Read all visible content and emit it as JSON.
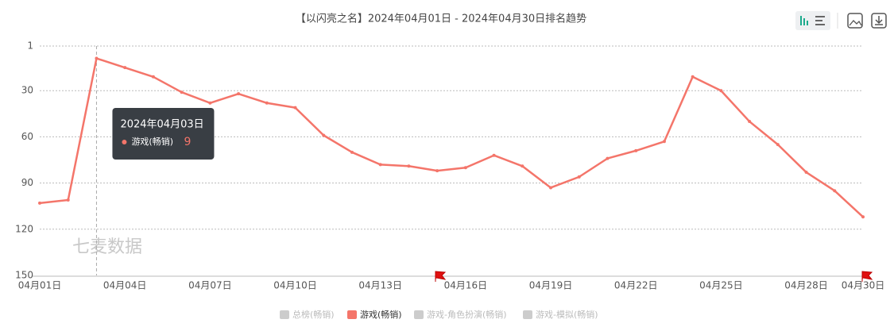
{
  "chart_data": {
    "type": "line",
    "title": "【以闪亮之名】2024年04月01日 - 2024年04月30日排名趋势",
    "categories": [
      "04月01日",
      null,
      null,
      "04月04日",
      null,
      null,
      "04月07日",
      null,
      null,
      "04月10日",
      null,
      null,
      "04月13日",
      null,
      null,
      "04月16日",
      null,
      null,
      "04月19日",
      null,
      null,
      "04月22日",
      null,
      null,
      "04月25日",
      null,
      null,
      "04月28日",
      null,
      "04月30日"
    ],
    "series": [
      {
        "name": "总榜(畅销)",
        "color": "#cccccc",
        "visible": false
      },
      {
        "name": "游戏(畅销)",
        "color": "#f4756a",
        "visible": true,
        "values": [
          103,
          101,
          9,
          15,
          21,
          31,
          38,
          32,
          38,
          41,
          59,
          70,
          78,
          79,
          82,
          80,
          72,
          79,
          93,
          86,
          74,
          69,
          63,
          21,
          30,
          50,
          65,
          83,
          95,
          112
        ]
      },
      {
        "name": "游戏-角色扮演(畅销)",
        "color": "#cccccc",
        "visible": false
      },
      {
        "name": "游戏-模拟(畅销)",
        "color": "#cccccc",
        "visible": false
      }
    ],
    "ylim": [
      1,
      150
    ],
    "y_inverted": true,
    "yticks": [
      1,
      30,
      60,
      90,
      120,
      150
    ],
    "grid": true,
    "tooltip": {
      "title": "2024年04月03日",
      "series_index": 1,
      "point_index": 2
    },
    "watermark": "七麦数据"
  }
}
